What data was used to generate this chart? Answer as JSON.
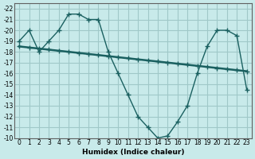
{
  "xlabel": "Humidex (Indice chaleur)",
  "ylabel": "",
  "xlim": [
    -0.5,
    23.5
  ],
  "ylim_top": -10,
  "ylim_bottom": -22.5,
  "yticks": [
    -10,
    -11,
    -12,
    -13,
    -14,
    -15,
    -16,
    -17,
    -18,
    -19,
    -20,
    -21,
    -22
  ],
  "xticks": [
    0,
    1,
    2,
    3,
    4,
    5,
    6,
    7,
    8,
    9,
    10,
    11,
    12,
    13,
    14,
    15,
    16,
    17,
    18,
    19,
    20,
    21,
    22,
    23
  ],
  "bg_color": "#c8eaea",
  "grid_color": "#a0c8c8",
  "line_color": "#1a6060",
  "line1_x": [
    0,
    1,
    2,
    3,
    4,
    5,
    6,
    7,
    8,
    9,
    10,
    11,
    12,
    13,
    14,
    15,
    16,
    17,
    18,
    19,
    20,
    21,
    22,
    23
  ],
  "line1_y": [
    -19.0,
    -20.0,
    -18.0,
    -19.0,
    -20.0,
    -21.5,
    -21.5,
    -21.0,
    -21.0,
    -18.0,
    -16.0,
    -14.0,
    -12.0,
    -11.0,
    -10.0,
    -10.2,
    -11.5,
    -13.0,
    -16.0,
    -18.5,
    -20.0,
    -20.0,
    -19.5,
    -14.5
  ],
  "line2_x": [
    0,
    1,
    2,
    3,
    4,
    5,
    6,
    7,
    8,
    9,
    10,
    11,
    12,
    13,
    14,
    15,
    16,
    17,
    18,
    19,
    20,
    21,
    22,
    23
  ],
  "line2_y": [
    -18.5,
    -18.4,
    -18.3,
    -18.2,
    -18.1,
    -18.0,
    -17.9,
    -17.8,
    -17.7,
    -17.6,
    -17.5,
    -17.4,
    -17.3,
    -17.2,
    -17.1,
    -17.0,
    -16.9,
    -16.8,
    -16.7,
    -16.6,
    -16.5,
    -16.4,
    -16.3,
    -16.2
  ]
}
